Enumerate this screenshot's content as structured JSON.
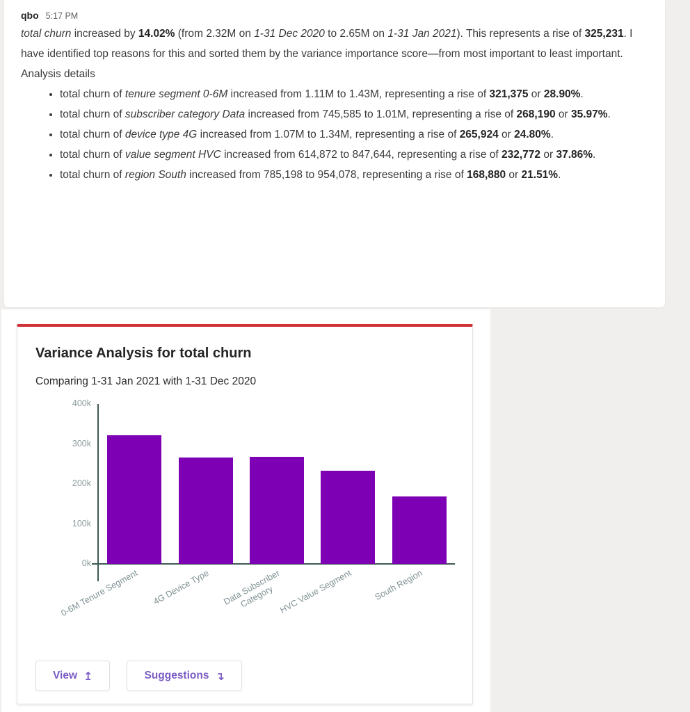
{
  "message": {
    "sender": "qbo",
    "time": "5:17 PM",
    "paragraph": [
      [
        "i",
        "total churn"
      ],
      [
        "p",
        " increased by "
      ],
      [
        "b",
        "14.02%"
      ],
      [
        "p",
        " (from 2.32M on "
      ],
      [
        "i",
        "1-31 Dec 2020"
      ],
      [
        "p",
        " to 2.65M on "
      ],
      [
        "i",
        "1-31 Jan 2021"
      ],
      [
        "p",
        "). This represents a rise of "
      ],
      [
        "b",
        "325,231"
      ],
      [
        "p",
        ". I have identified top reasons for this and sorted them by the variance importance score—from most important to least important. Analysis details"
      ]
    ],
    "bullets": [
      [
        [
          "p",
          "total churn of "
        ],
        [
          "i",
          "tenure segment 0-6M"
        ],
        [
          "p",
          " increased from 1.11M to 1.43M, representing a rise of "
        ],
        [
          "b",
          "321,375"
        ],
        [
          "p",
          " or "
        ],
        [
          "b",
          "28.90%"
        ],
        [
          "p",
          "."
        ]
      ],
      [
        [
          "p",
          "total churn of "
        ],
        [
          "i",
          "subscriber category Data"
        ],
        [
          "p",
          " increased from 745,585 to 1.01M, representing a rise of "
        ],
        [
          "b",
          "268,190"
        ],
        [
          "p",
          " or "
        ],
        [
          "b",
          "35.97%"
        ],
        [
          "p",
          "."
        ]
      ],
      [
        [
          "p",
          "total churn of "
        ],
        [
          "i",
          "device type 4G"
        ],
        [
          "p",
          " increased from 1.07M to 1.34M, representing a rise of "
        ],
        [
          "b",
          "265,924"
        ],
        [
          "p",
          " or "
        ],
        [
          "b",
          "24.80%"
        ],
        [
          "p",
          "."
        ]
      ],
      [
        [
          "p",
          "total churn of "
        ],
        [
          "i",
          "value segment HVC"
        ],
        [
          "p",
          " increased from 614,872 to 847,644, representing a rise of "
        ],
        [
          "b",
          "232,772"
        ],
        [
          "p",
          " or "
        ],
        [
          "b",
          "37.86%"
        ],
        [
          "p",
          "."
        ]
      ],
      [
        [
          "p",
          "total churn of "
        ],
        [
          "i",
          "region South"
        ],
        [
          "p",
          " increased from 785,198 to 954,078, representing a rise of "
        ],
        [
          "b",
          "168,880"
        ],
        [
          "p",
          " or "
        ],
        [
          "b",
          "21.51%"
        ],
        [
          "p",
          "."
        ]
      ]
    ]
  },
  "card": {
    "title": "Variance Analysis for total churn",
    "subtitle": "Comparing 1-31 Jan 2021 with 1-31 Dec 2020",
    "accent_color": "#d13438",
    "buttons": [
      {
        "label": "View",
        "icon": "open-view-arrow-icon",
        "glyph": "↥"
      },
      {
        "label": "Suggestions",
        "icon": "corner-down-arrow-icon",
        "glyph": "↴"
      }
    ]
  },
  "chart_data": {
    "type": "bar",
    "title": "Variance Analysis for total churn",
    "subtitle": "Comparing 1-31 Jan 2021 with 1-31 Dec 2020",
    "categories": [
      "0-6M Tenure Segment",
      "4G Device Type",
      "Data Subscriber\nCategory",
      "HVC Value Segment",
      "South Region"
    ],
    "values": [
      321375,
      265924,
      268190,
      232772,
      168880
    ],
    "xlabel": "",
    "ylabel": "",
    "ylim": [
      0,
      400000
    ],
    "ytick_labels": [
      "400k",
      "300k",
      "200k",
      "100k",
      "0k"
    ],
    "grid": false,
    "legend": false,
    "bar_color": "#7d00b4",
    "axis_color": "#3d5a55",
    "ytick_color": "#8c9b9b",
    "xtick_color": "#7f9193"
  }
}
